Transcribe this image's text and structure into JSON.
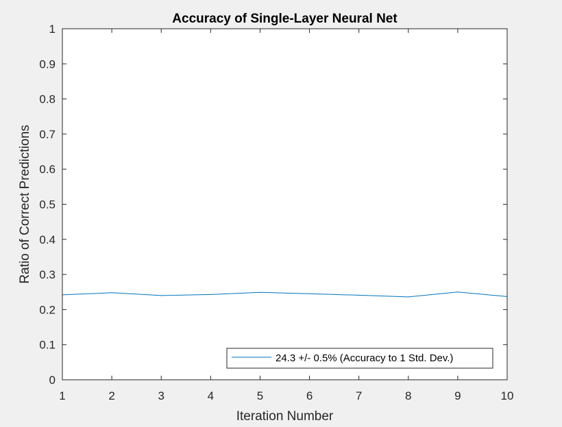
{
  "chart_data": {
    "type": "line",
    "title": "Accuracy of Single-Layer Neural Net",
    "xlabel": "Iteration Number",
    "ylabel": "Ratio of Correct Predictions",
    "xlim": [
      1,
      10
    ],
    "ylim": [
      0,
      1
    ],
    "x_ticks": [
      "1",
      "2",
      "3",
      "4",
      "5",
      "6",
      "7",
      "8",
      "9",
      "10"
    ],
    "y_ticks": [
      "0",
      "0.1",
      "0.2",
      "0.3",
      "0.4",
      "0.5",
      "0.6",
      "0.7",
      "0.8",
      "0.9",
      "1"
    ],
    "grid": false,
    "legend_position": "bottom-right",
    "series": [
      {
        "name": "24.3 +/- 0.5% (Accuracy to 1 Std. Dev.)",
        "color": "#0072bd",
        "x": [
          1,
          2,
          3,
          4,
          5,
          6,
          7,
          8,
          9,
          10
        ],
        "values": [
          0.242,
          0.248,
          0.24,
          0.243,
          0.249,
          0.245,
          0.241,
          0.236,
          0.25,
          0.237
        ]
      }
    ]
  },
  "colors": {
    "figure_background": "#f0f0f0",
    "axes_background": "#ffffff",
    "axis_color": "#262626"
  }
}
